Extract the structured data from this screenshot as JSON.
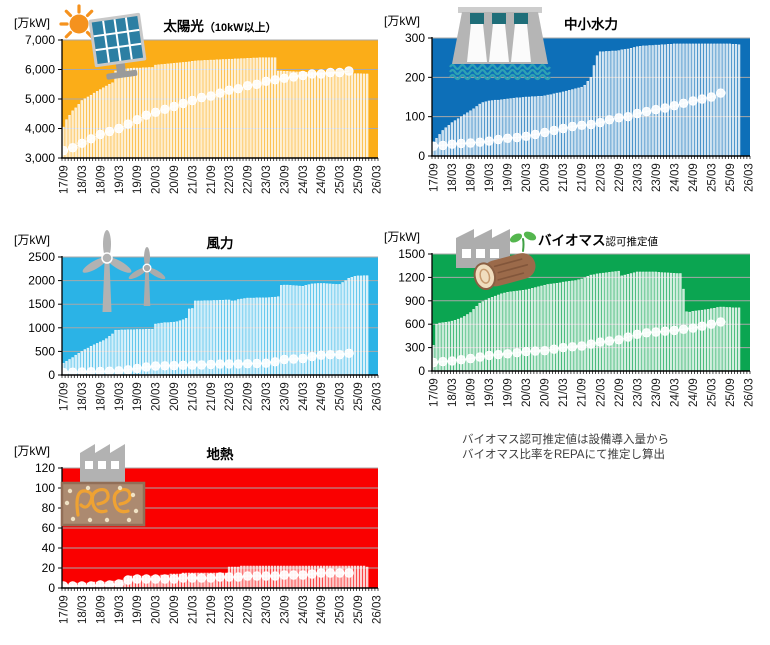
{
  "note": {
    "line1": "バイオマス認可推定値は設備導入量から",
    "line2": "バイオマス比率をREPAにて推定し算出"
  },
  "x_axis": {
    "labels": [
      "17/09",
      "18/03",
      "18/09",
      "19/03",
      "19/09",
      "20/03",
      "20/09",
      "21/03",
      "21/09",
      "22/03",
      "22/09",
      "23/03",
      "23/09",
      "24/03",
      "24/09",
      "25/03",
      "25/09",
      "26/03"
    ],
    "start": "2017/09",
    "end": "2026/03",
    "bar_interval": "monthly",
    "marker_interval": "quarterly"
  },
  "chart_data": [
    {
      "id": "solar",
      "type": "bar-line",
      "title": "太陽光",
      "title_suffix": "（10kW以上）",
      "unit": "[万kW]",
      "icon": "solar-panel-and-sun",
      "background_color": "#FBAD18",
      "bar_color": "#FFFFFF",
      "marker_color": "#FFFFFF",
      "grid_color": "#A8A8A8",
      "y_axis": {
        "min": 3000,
        "max": 7000,
        "tick_values": [
          7000,
          6000,
          5000,
          4000,
          3000
        ],
        "tick_labels": [
          "7,000",
          "6,000",
          "5,000",
          "4,000",
          "3,000"
        ]
      },
      "bars_monthly": [
        4050,
        4300,
        4450,
        4600,
        4700,
        4820,
        4950,
        5010,
        5070,
        5130,
        5200,
        5260,
        5320,
        5380,
        5440,
        5500,
        5550,
        5950,
        6000,
        6010,
        6020,
        6030,
        6040,
        6050,
        6050,
        6050,
        6060,
        6060,
        6070,
        6070,
        6150,
        6160,
        6170,
        6180,
        6190,
        6200,
        6210,
        6220,
        6230,
        6240,
        6250,
        6260,
        6280,
        6290,
        6300,
        6300,
        6310,
        6310,
        6320,
        6320,
        6330,
        6330,
        6340,
        6340,
        6350,
        6350,
        6360,
        6360,
        6370,
        6370,
        6380,
        6380,
        6390,
        6390,
        6400,
        6400,
        6400,
        6400,
        6400,
        6400,
        5950,
        5950,
        5940,
        5940,
        5930,
        5930,
        5920,
        5920,
        5910,
        5910,
        5905,
        5900,
        5900,
        5895,
        5890,
        5890,
        5885,
        5885,
        5880,
        5880,
        5875,
        5875,
        5870,
        5870,
        5865,
        5860,
        5860,
        5855,
        5850,
        5850
      ],
      "line_quarterly": [
        3250,
        3350,
        3500,
        3650,
        3800,
        3900,
        4000,
        4150,
        4300,
        4450,
        4550,
        4650,
        4750,
        4850,
        4950,
        5050,
        5100,
        5200,
        5300,
        5350,
        5450,
        5500,
        5600,
        5650,
        5700,
        5750,
        5800,
        5850,
        5850,
        5900,
        5900,
        5950
      ]
    },
    {
      "id": "hydro",
      "type": "bar-line",
      "title": "中小水力",
      "title_suffix": "",
      "unit": "[万kW]",
      "icon": "dam-with-water",
      "background_color": "#0D6FB8",
      "bar_color": "#FFFFFF",
      "marker_color": "#FFFFFF",
      "grid_color": "#A8A8A8",
      "y_axis": {
        "min": 0,
        "max": 300,
        "tick_values": [
          300,
          200,
          100,
          0
        ],
        "tick_labels": [
          "300",
          "200",
          "100",
          "0"
        ]
      },
      "bars_monthly": [
        35,
        45,
        55,
        65,
        72,
        78,
        85,
        90,
        95,
        100,
        105,
        110,
        115,
        120,
        126,
        132,
        136,
        138,
        140,
        141,
        142,
        142,
        143,
        144,
        145,
        146,
        147,
        148,
        148,
        149,
        150,
        150,
        151,
        151,
        152,
        152,
        153,
        155,
        156,
        158,
        160,
        161,
        163,
        165,
        167,
        169,
        171,
        173,
        175,
        180,
        190,
        200,
        230,
        255,
        265,
        265,
        266,
        266,
        267,
        267,
        268,
        270,
        271,
        272,
        274,
        276,
        278,
        279,
        280,
        280,
        281,
        281,
        282,
        282,
        283,
        283,
        284,
        284,
        285,
        285,
        285,
        285,
        285,
        285,
        285,
        285,
        285,
        285,
        285,
        285,
        285,
        285,
        285,
        285,
        285,
        285,
        285,
        284,
        284,
        283
      ],
      "line_quarterly": [
        25,
        27,
        30,
        32,
        33,
        35,
        38,
        42,
        45,
        47,
        50,
        55,
        60,
        65,
        70,
        75,
        78,
        80,
        85,
        92,
        97,
        100,
        108,
        113,
        118,
        122,
        128,
        134,
        140,
        145,
        150,
        160
      ]
    },
    {
      "id": "wind",
      "type": "bar-line",
      "title": "風力",
      "title_suffix": "",
      "unit": "[万kW]",
      "icon": "wind-turbines",
      "background_color": "#2BB3E6",
      "bar_color": "#FFFFFF",
      "marker_color": "#FFFFFF",
      "grid_color": "#A8A8A8",
      "y_axis": {
        "min": 0,
        "max": 2500,
        "tick_values": [
          2500,
          2000,
          1500,
          1000,
          500,
          0
        ],
        "tick_labels": [
          "2500",
          "2000",
          "1500",
          "1000",
          "500",
          "0"
        ]
      },
      "bars_monthly": [
        250,
        290,
        330,
        370,
        420,
        460,
        500,
        540,
        570,
        610,
        640,
        670,
        700,
        730,
        770,
        820,
        870,
        950,
        950,
        955,
        955,
        960,
        960,
        960,
        965,
        965,
        965,
        970,
        970,
        970,
        1080,
        1090,
        1100,
        1110,
        1110,
        1115,
        1120,
        1130,
        1150,
        1170,
        1200,
        1400,
        1410,
        1570,
        1570,
        1570,
        1575,
        1575,
        1575,
        1580,
        1580,
        1585,
        1585,
        1590,
        1590,
        1570,
        1575,
        1600,
        1610,
        1620,
        1630,
        1630,
        1630,
        1635,
        1635,
        1635,
        1635,
        1640,
        1645,
        1650,
        1660,
        1900,
        1905,
        1905,
        1900,
        1895,
        1890,
        1885,
        1880,
        1900,
        1915,
        1930,
        1935,
        1940,
        1940,
        1940,
        1935,
        1930,
        1925,
        1920,
        1920,
        1960,
        2000,
        2050,
        2070,
        2090,
        2100,
        2100,
        2105,
        2105
      ],
      "line_quarterly": [
        50,
        60,
        65,
        70,
        75,
        80,
        90,
        110,
        140,
        170,
        190,
        195,
        200,
        205,
        210,
        215,
        225,
        230,
        235,
        235,
        240,
        245,
        250,
        280,
        330,
        340,
        350,
        390,
        420,
        430,
        430,
        460
      ]
    },
    {
      "id": "biomass",
      "type": "bar-line",
      "title": "バイオマス",
      "title_suffix": "認可推定値",
      "unit": "[万kW]",
      "icon": "factory-log-sprout",
      "background_color": "#0BA551",
      "bar_color": "#FFFFFF",
      "marker_color": "#FFFFFF",
      "grid_color": "#A8A8A8",
      "y_axis": {
        "min": 0,
        "max": 1500,
        "tick_values": [
          1500,
          1200,
          900,
          600,
          300,
          0
        ],
        "tick_labels": [
          "1500",
          "1200",
          "900",
          "600",
          "300",
          "0"
        ]
      },
      "bars_monthly": [
        330,
        600,
        615,
        620,
        625,
        630,
        640,
        650,
        665,
        680,
        700,
        725,
        750,
        790,
        830,
        870,
        890,
        910,
        930,
        945,
        960,
        975,
        990,
        1000,
        1010,
        1015,
        1020,
        1025,
        1030,
        1035,
        1040,
        1050,
        1060,
        1070,
        1080,
        1090,
        1100,
        1110,
        1115,
        1120,
        1125,
        1130,
        1140,
        1145,
        1150,
        1155,
        1160,
        1170,
        1180,
        1195,
        1215,
        1230,
        1235,
        1245,
        1250,
        1255,
        1260,
        1265,
        1270,
        1275,
        1280,
        1220,
        1230,
        1240,
        1250,
        1260,
        1270,
        1270,
        1270,
        1270,
        1270,
        1270,
        1270,
        1265,
        1262,
        1260,
        1258,
        1255,
        1252,
        1250,
        1250,
        1050,
        760,
        755,
        765,
        770,
        775,
        780,
        785,
        790,
        800,
        805,
        815,
        820,
        820,
        815,
        815,
        810,
        810,
        810
      ],
      "line_quarterly": [
        110,
        120,
        130,
        145,
        160,
        180,
        200,
        210,
        220,
        235,
        250,
        255,
        260,
        280,
        300,
        310,
        320,
        345,
        370,
        385,
        400,
        435,
        470,
        490,
        500,
        510,
        520,
        535,
        550,
        575,
        600,
        630
      ]
    },
    {
      "id": "geo",
      "type": "bar-line",
      "title": "地熱",
      "title_suffix": "",
      "unit": "[万kW]",
      "icon": "geothermal-plant",
      "background_color": "#FA0000",
      "bar_color": "#FFFFFF",
      "marker_color": "#FFFFFF",
      "grid_color": "#A8A8A8",
      "y_axis": {
        "min": 0,
        "max": 120,
        "tick_values": [
          120,
          100,
          80,
          60,
          40,
          20,
          0
        ],
        "tick_labels": [
          "120",
          "100",
          "80",
          "60",
          "40",
          "20",
          "0"
        ]
      },
      "bars_monthly": [
        4,
        4,
        4,
        5,
        5,
        5,
        5,
        5,
        5,
        6,
        6,
        6,
        6,
        6,
        6,
        6,
        7,
        7,
        7,
        8,
        10,
        12,
        12,
        12,
        12,
        12,
        12,
        12,
        12,
        12,
        12,
        12,
        13,
        13,
        13,
        14,
        14,
        14,
        14,
        15,
        15,
        15,
        15,
        15,
        15,
        15,
        15,
        15,
        15,
        15,
        15,
        15,
        15,
        15,
        21,
        21,
        21,
        21,
        22,
        22,
        22,
        22,
        22,
        22,
        22,
        22,
        22,
        22,
        22,
        22,
        22,
        22,
        22,
        22,
        22,
        22,
        22,
        22,
        22,
        22,
        22,
        22,
        22,
        22,
        22,
        22,
        22,
        22,
        22,
        22,
        22,
        22,
        22,
        22,
        22,
        22,
        22,
        22,
        22,
        21
      ],
      "line_quarterly": [
        2,
        2,
        2,
        2,
        3,
        3,
        4,
        8,
        9,
        9,
        9,
        9,
        9,
        10,
        10,
        10,
        10,
        11,
        11,
        11,
        12,
        12,
        12,
        12,
        13,
        13,
        13,
        14,
        15,
        15,
        15,
        15
      ]
    }
  ]
}
